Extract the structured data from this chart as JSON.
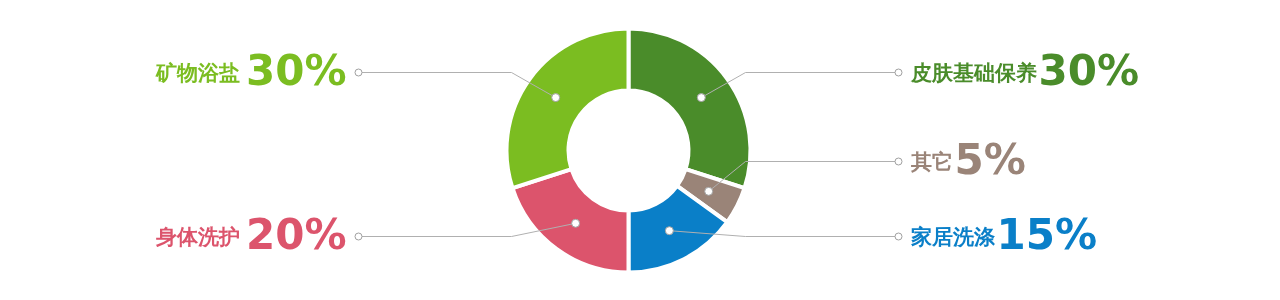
{
  "chart_data": {
    "type": "donut",
    "categories": [
      "皮肤基础保养",
      "其它",
      "家居洗涤",
      "身体洗护",
      "矿物浴盐"
    ],
    "values": [
      30,
      5,
      15,
      20,
      30
    ],
    "colors": [
      "#4a8c2a",
      "#9a8478",
      "#0a7fc8",
      "#dc546c",
      "#7bbd21"
    ],
    "value_labels": [
      "30%",
      "5%",
      "15%",
      "20%",
      "30%"
    ]
  }
}
